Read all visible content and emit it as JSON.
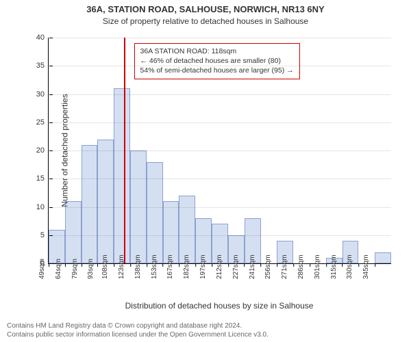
{
  "title_main": "36A, STATION ROAD, SALHOUSE, NORWICH, NR13 6NY",
  "title_sub": "Size of property relative to detached houses in Salhouse",
  "ylabel": "Number of detached properties",
  "xlabel": "Distribution of detached houses by size in Salhouse",
  "footer_line1": "Contains HM Land Registry data © Crown copyright and database right 2024.",
  "footer_line2": "Contains public sector information licensed under the Open Government Licence v3.0.",
  "chart": {
    "type": "histogram",
    "ylim": [
      0,
      40
    ],
    "yticks": [
      0,
      5,
      10,
      15,
      20,
      25,
      30,
      35,
      40
    ],
    "x_start": 49,
    "x_step": 15,
    "xticks": [
      "49sqm",
      "64sqm",
      "79sqm",
      "93sqm",
      "108sqm",
      "123sqm",
      "138sqm",
      "153sqm",
      "167sqm",
      "182sqm",
      "197sqm",
      "212sqm",
      "227sqm",
      "241sqm",
      "256sqm",
      "271sqm",
      "286sqm",
      "301sqm",
      "315sqm",
      "330sqm",
      "345sqm"
    ],
    "values": [
      6,
      11,
      21,
      22,
      31,
      20,
      18,
      11,
      12,
      8,
      7,
      5,
      8,
      0,
      4,
      0,
      0,
      1,
      4,
      0,
      2
    ],
    "bar_fill": "rgba(100,140,210,.28)",
    "bar_border": "rgba(70,100,170,.5)",
    "marker_value": 118,
    "marker_color": "#c00",
    "background": "#ffffff"
  },
  "annotation": {
    "line1": "36A STATION ROAD: 118sqm",
    "line2": "← 46% of detached houses are smaller (80)",
    "line3": "54% of semi-detached houses are larger (95) →"
  }
}
